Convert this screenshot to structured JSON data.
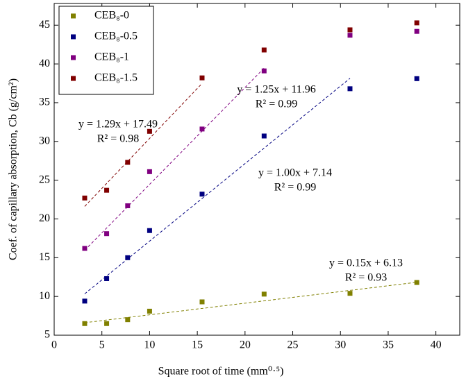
{
  "chart_data": {
    "type": "scatter",
    "x_label": "Square root of time (mm⁰·⁵)",
    "y_label": "Coef. of capillary absorption, Cb (g/cm²)",
    "xlim": [
      0,
      42.5
    ],
    "ylim": [
      5,
      47.8
    ],
    "xticks": [
      0,
      5,
      10,
      15,
      20,
      25,
      30,
      35,
      40
    ],
    "yticks": [
      5,
      10,
      15,
      20,
      25,
      30,
      35,
      40,
      45
    ],
    "legend": "top-left",
    "x": [
      3.2,
      5.5,
      7.7,
      10,
      15.5,
      22,
      31,
      38
    ],
    "series": [
      {
        "name": "CEB₈-0",
        "color": "#808000",
        "values": [
          6.5,
          6.5,
          7.0,
          8.1,
          9.3,
          10.3,
          10.4,
          11.8
        ],
        "fit": {
          "label": "y = 0.15x + 6.13",
          "r2_label": "R² = 0.93",
          "slope": 0.15,
          "intercept": 6.13,
          "x": [
            3.2,
            38
          ]
        }
      },
      {
        "name": "CEB₈-0.5",
        "color": "#000080",
        "values": [
          9.4,
          12.3,
          15.0,
          18.5,
          23.2,
          30.7,
          36.8,
          38.1
        ],
        "fit": {
          "label": "y = 1.00x + 7.14",
          "r2_label": "R² = 0.99",
          "slope": 1.0,
          "intercept": 7.14,
          "x": [
            3.2,
            31
          ]
        }
      },
      {
        "name": "CEB₈-1",
        "color": "#800080",
        "values": [
          16.2,
          18.1,
          21.7,
          26.1,
          31.6,
          39.1,
          43.7,
          44.2
        ],
        "fit": {
          "label": "y = 1.25x + 11.96",
          "r2_label": "R² = 0.99",
          "slope": 1.25,
          "intercept": 11.96,
          "x": [
            3.2,
            22
          ]
        }
      },
      {
        "name": "CEB₈-1.5",
        "color": "#800000",
        "values": [
          22.7,
          23.7,
          27.3,
          31.3,
          38.2,
          41.8,
          44.4,
          45.3
        ],
        "fit": {
          "label": "y = 1.29x + 17.49",
          "r2_label": "R² = 0.98",
          "slope": 1.29,
          "intercept": 17.49,
          "x": [
            3.2,
            15.5
          ]
        }
      }
    ]
  }
}
